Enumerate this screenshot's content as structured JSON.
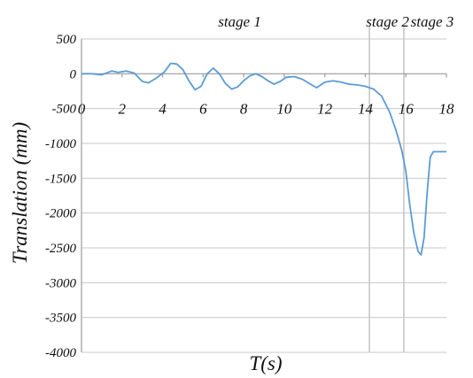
{
  "chart_data": {
    "type": "line",
    "title": "",
    "xlabel": "T(s)",
    "ylabel": "Translation (mm)",
    "xlim": [
      0,
      18
    ],
    "ylim": [
      -4000,
      500
    ],
    "x_ticks": [
      "0",
      "2",
      "4",
      "6",
      "8",
      "10",
      "12",
      "14",
      "16",
      "18"
    ],
    "y_ticks": [
      "500",
      "0",
      "-500",
      "-1000",
      "-1500",
      "-2000",
      "-2500",
      "-3000",
      "-3500",
      "-4000"
    ],
    "grid": true,
    "stages": [
      {
        "label": "stage 1",
        "label_x": 7.8
      },
      {
        "label": "stage 2",
        "boundary_x": 14.2,
        "label_x": 15.1
      },
      {
        "label": "stage 3",
        "boundary_x": 15.9,
        "label_x": 17.3
      }
    ],
    "series": [
      {
        "color": "#5b9bd5",
        "x": [
          0,
          0.5,
          1.0,
          1.5,
          1.8,
          2.2,
          2.6,
          3.0,
          3.3,
          3.7,
          4.1,
          4.4,
          4.7,
          5.0,
          5.3,
          5.6,
          5.9,
          6.2,
          6.5,
          6.8,
          7.1,
          7.4,
          7.7,
          8.0,
          8.3,
          8.6,
          8.9,
          9.2,
          9.5,
          9.8,
          10.1,
          10.5,
          10.9,
          11.3,
          11.6,
          12.0,
          12.4,
          12.8,
          13.2,
          13.6,
          14.0,
          14.4,
          14.8,
          15.2,
          15.5,
          15.8,
          16.0,
          16.2,
          16.4,
          16.6,
          16.75,
          16.9,
          17.05,
          17.2,
          17.35,
          17.5,
          17.8,
          18.0
        ],
        "y": [
          0,
          0,
          -15,
          40,
          20,
          40,
          10,
          -110,
          -130,
          -60,
          30,
          150,
          140,
          60,
          -100,
          -230,
          -180,
          0,
          80,
          0,
          -140,
          -220,
          -190,
          -100,
          -30,
          0,
          -40,
          -100,
          -150,
          -110,
          -50,
          -40,
          -80,
          -150,
          -200,
          -120,
          -100,
          -120,
          -150,
          -160,
          -180,
          -220,
          -320,
          -550,
          -800,
          -1100,
          -1400,
          -1900,
          -2300,
          -2550,
          -2600,
          -2350,
          -1700,
          -1200,
          -1120,
          -1120,
          -1120,
          -1120
        ]
      }
    ]
  }
}
